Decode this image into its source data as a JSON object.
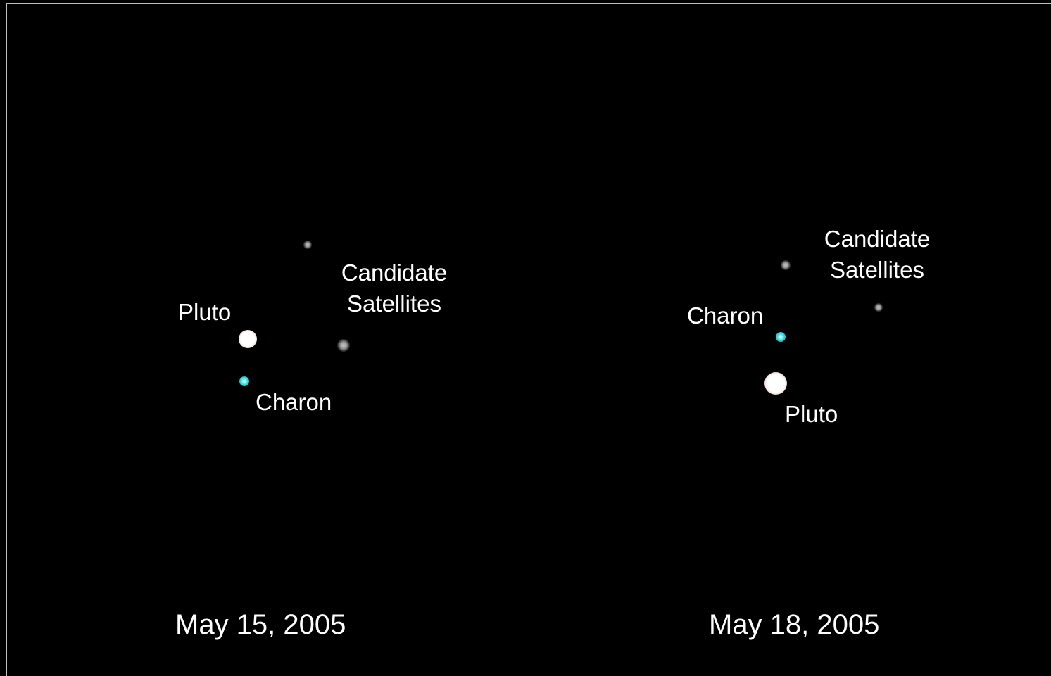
{
  "panels": [
    {
      "date": "May 15, 2005",
      "labels": {
        "pluto": "Pluto",
        "charon": "Charon",
        "candidate_line1": "Candidate",
        "candidate_line2": "Satellites"
      }
    },
    {
      "date": "May 18, 2005",
      "labels": {
        "pluto": "Pluto",
        "charon": "Charon",
        "candidate_line1": "Candidate",
        "candidate_line2": "Satellites"
      }
    }
  ],
  "colors": {
    "background": "#000000",
    "border": "#bdbdbd",
    "text": "#ffffff",
    "charon": "#4fe6ea",
    "pluto": "#ffffff",
    "satellite": "#9a9a9a"
  }
}
